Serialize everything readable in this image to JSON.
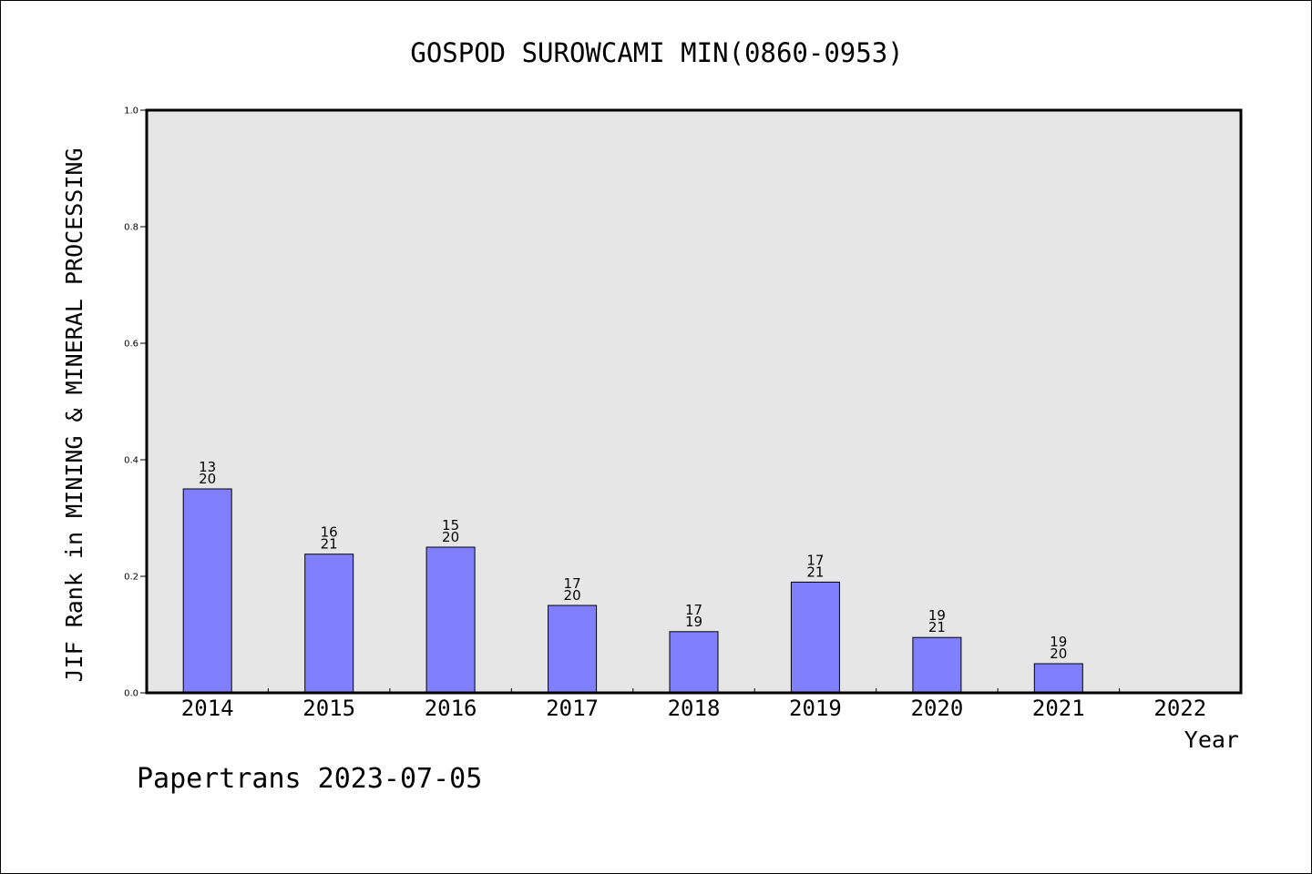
{
  "chart_data": {
    "type": "bar",
    "title": "GOSPOD SUROWCAMI MIN(0860-0953)",
    "xlabel": "Year",
    "ylabel": "JIF Rank in MINING & MINERAL PROCESSING",
    "categories": [
      "2014",
      "2015",
      "2016",
      "2017",
      "2018",
      "2019",
      "2020",
      "2021",
      "2022"
    ],
    "values": [
      0.35,
      0.238,
      0.25,
      0.15,
      0.105,
      0.19,
      0.095,
      0.05,
      null
    ],
    "rank_labels": [
      {
        "rank": "13",
        "total": "20"
      },
      {
        "rank": "16",
        "total": "21"
      },
      {
        "rank": "15",
        "total": "20"
      },
      {
        "rank": "17",
        "total": "20"
      },
      {
        "rank": "17",
        "total": "19"
      },
      {
        "rank": "17",
        "total": "21"
      },
      {
        "rank": "19",
        "total": "21"
      },
      {
        "rank": "19",
        "total": "20"
      },
      null
    ],
    "ylim": [
      0,
      1.0
    ],
    "yticks": [
      "0.0",
      "0.2",
      "0.4",
      "0.6",
      "0.8",
      "1.0"
    ],
    "grid": false,
    "bar_color": "#8080ff",
    "plot_background": "#e6e6e6"
  },
  "footer": {
    "text": "Papertrans 2023-07-05"
  }
}
